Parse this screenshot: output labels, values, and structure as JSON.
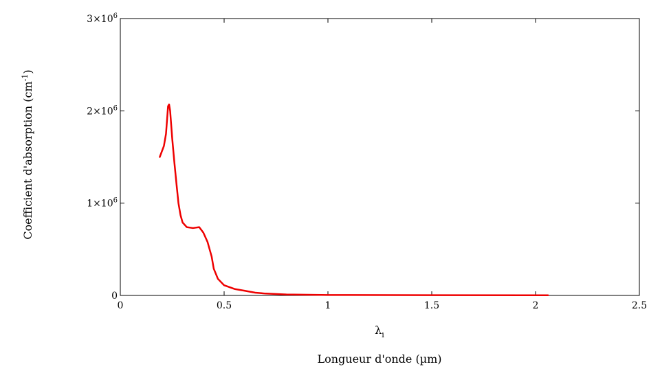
{
  "chart_data": {
    "type": "line",
    "xlabel_symbol": "λ",
    "xlabel_subscript": "i",
    "xlabel": "Longueur d'onde (µm)",
    "ylabel": "Coefficient d'absorption  (cm",
    "ylabel_sup": "-1",
    "ylabel_close": ")",
    "xlim": [
      0,
      2.5
    ],
    "ylim": [
      0,
      3000000
    ],
    "grid": false,
    "x_ticks": [
      {
        "value": 0,
        "label": "0"
      },
      {
        "value": 0.5,
        "label": "0.5"
      },
      {
        "value": 1,
        "label": "1"
      },
      {
        "value": 1.5,
        "label": "1.5"
      },
      {
        "value": 2,
        "label": "2"
      },
      {
        "value": 2.5,
        "label": "2.5"
      }
    ],
    "y_ticks": [
      {
        "value": 0,
        "label": "0",
        "sup": ""
      },
      {
        "value": 1000000,
        "label": "1×10",
        "sup": "6"
      },
      {
        "value": 2000000,
        "label": "2×10",
        "sup": "6"
      },
      {
        "value": 3000000,
        "label": "3×10",
        "sup": "6"
      }
    ],
    "series": [
      {
        "color": "#ee0000",
        "x": [
          0.19,
          0.21,
          0.22,
          0.23,
          0.235,
          0.24,
          0.25,
          0.26,
          0.27,
          0.28,
          0.29,
          0.3,
          0.32,
          0.35,
          0.38,
          0.4,
          0.42,
          0.44,
          0.45,
          0.47,
          0.5,
          0.55,
          0.6,
          0.65,
          0.7,
          0.8,
          1.0,
          1.5,
          2.0,
          2.06
        ],
        "y": [
          1500000,
          1620000,
          1750000,
          2050000,
          2070000,
          2000000,
          1700000,
          1450000,
          1220000,
          1000000,
          870000,
          790000,
          740000,
          730000,
          740000,
          680000,
          580000,
          420000,
          290000,
          180000,
          110000,
          70000,
          50000,
          30000,
          20000,
          10000,
          5000,
          3000,
          2000,
          2000
        ]
      }
    ]
  }
}
